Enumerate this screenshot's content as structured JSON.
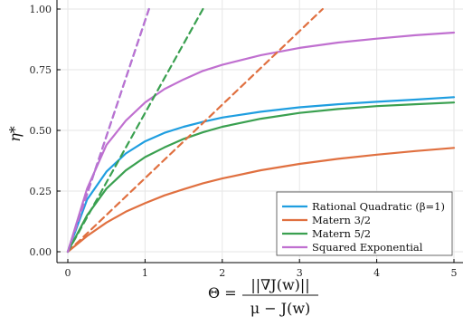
{
  "chart_data": {
    "type": "line",
    "xlabel": {
      "lhs": "Θ =",
      "numerator": "||∇J(w)||",
      "denominator": "μ − J(w)"
    },
    "ylabel": "η*",
    "xlim": [
      0,
      5
    ],
    "ylim": [
      0,
      1
    ],
    "x_ticks": [
      "0",
      "1",
      "2",
      "3",
      "4",
      "5"
    ],
    "y_ticks": [
      "0.00",
      "0.25",
      "0.50",
      "0.75",
      "1.00"
    ],
    "grid": true,
    "legend_position": "bottom-right",
    "x": [
      0,
      0.25,
      0.5,
      0.75,
      1,
      1.25,
      1.5,
      1.75,
      2,
      2.5,
      3,
      3.5,
      4,
      4.5,
      5
    ],
    "series": [
      {
        "name": "Rational Quadratic (β=1)",
        "color": "#1f9ee0",
        "style": "solid",
        "values": [
          0,
          0.215,
          0.33,
          0.405,
          0.455,
          0.49,
          0.515,
          0.535,
          0.553,
          0.577,
          0.595,
          0.608,
          0.618,
          0.627,
          0.637
        ]
      },
      {
        "name": "Matern 3/2",
        "color": "#e07040",
        "style": "solid",
        "values": [
          0,
          0.065,
          0.12,
          0.165,
          0.2,
          0.232,
          0.258,
          0.282,
          0.302,
          0.336,
          0.362,
          0.383,
          0.4,
          0.415,
          0.428
        ]
      },
      {
        "name": "Matern 5/2",
        "color": "#3aa050",
        "style": "solid",
        "values": [
          0,
          0.15,
          0.26,
          0.335,
          0.39,
          0.43,
          0.465,
          0.492,
          0.515,
          0.548,
          0.572,
          0.588,
          0.6,
          0.608,
          0.615
        ]
      },
      {
        "name": "Squared Exponential",
        "color": "#c070d0",
        "style": "solid",
        "values": [
          0,
          0.26,
          0.44,
          0.54,
          0.615,
          0.67,
          0.71,
          0.745,
          0.77,
          0.81,
          0.84,
          0.862,
          0.878,
          0.892,
          0.903
        ]
      },
      {
        "color": "#e07040",
        "style": "dashed",
        "x": [
          0,
          3.3
        ],
        "values": [
          0,
          1.0
        ]
      },
      {
        "color": "#3aa050",
        "style": "dashed",
        "x": [
          0,
          1.75
        ],
        "values": [
          0,
          1.0
        ]
      },
      {
        "color": "#1f9ee0",
        "style": "dashed",
        "x": [
          0,
          1.05
        ],
        "values": [
          0,
          1.0
        ]
      },
      {
        "color": "#c070d0",
        "style": "dashed",
        "x": [
          0,
          1.05
        ],
        "values": [
          0,
          1.0
        ]
      }
    ]
  }
}
